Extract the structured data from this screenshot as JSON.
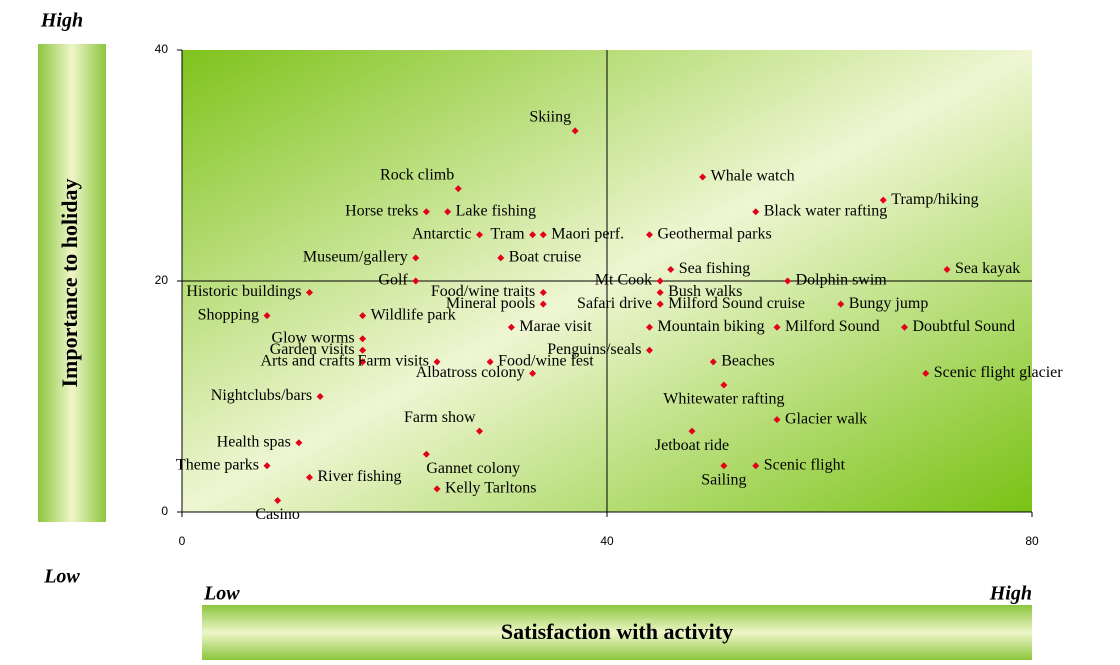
{
  "chart_data": {
    "type": "scatter",
    "xlabel": "Satisfaction with activity",
    "ylabel": "Importance to holiday",
    "annotations": {
      "y_high": "High",
      "y_low": "Low",
      "x_low": "Low",
      "x_high": "High"
    },
    "xlim": [
      0,
      80
    ],
    "ylim": [
      0,
      40
    ],
    "xticks": [
      0,
      40,
      80
    ],
    "yticks": [
      0,
      20,
      40
    ],
    "reference_lines": {
      "x": 40,
      "y": 20
    },
    "series": [
      {
        "color": "#e3001b",
        "labels": [
          "Skiing",
          "Whale watch",
          "Tramp/hiking",
          "Black water rafting",
          "Rock climb",
          "Horse treks",
          "Lake fishing",
          "Antarctic",
          "Tram",
          "Maori perf.",
          "Geothermal parks",
          "Museum/gallery",
          "Boat cruise",
          "Sea fishing",
          "Sea kayak",
          "Mt Cook",
          "Dolphin swim",
          "Golf",
          "Historic buildings",
          "Food/wine traits",
          "Bush walks",
          "Mineral pools",
          "Safari drive",
          "Milford Sound cruise",
          "Bungy jump",
          "Shopping",
          "Wildlife park",
          "Marae visit",
          "Mountain biking",
          "Milford Sound",
          "Doubtful Sound",
          "Glow worms",
          "Garden visits",
          "Arts and crafts",
          "Farm visits",
          "Food/wine fest",
          "Penguins/seals",
          "Beaches",
          "Albatross colony",
          "Scenic flight glacier",
          "Whitewater rafting",
          "Nightclubs/bars",
          "Glacier walk",
          "Farm show",
          "Jetboat ride",
          "Health spas",
          "Gannet colony",
          "Theme parks",
          "Sailing",
          "Scenic flight",
          "River fishing",
          "Kelly Tarltons",
          "Casino"
        ],
        "x": [
          37,
          49,
          66,
          54,
          26,
          23,
          25,
          28,
          33,
          34,
          44,
          22,
          30,
          46,
          72,
          45,
          57,
          22,
          12,
          34,
          45,
          34,
          45,
          45,
          62,
          8,
          17,
          31,
          44,
          56,
          68,
          17,
          17,
          17,
          24,
          29,
          44,
          50,
          33,
          70,
          51,
          13,
          56,
          28,
          48,
          11,
          23,
          8,
          51,
          54,
          12,
          24,
          9
        ],
        "values": [
          33,
          29,
          27,
          26,
          28,
          26,
          26,
          24,
          24,
          24,
          24,
          22,
          22,
          21,
          21,
          20,
          20,
          20,
          19,
          19,
          19,
          18,
          18,
          18,
          18,
          17,
          17,
          16,
          16,
          16,
          16,
          15,
          14,
          13,
          13,
          13,
          14,
          13,
          12,
          12,
          11,
          10,
          8,
          7,
          7,
          6,
          5,
          4,
          4,
          4,
          3,
          2,
          1
        ]
      }
    ]
  }
}
